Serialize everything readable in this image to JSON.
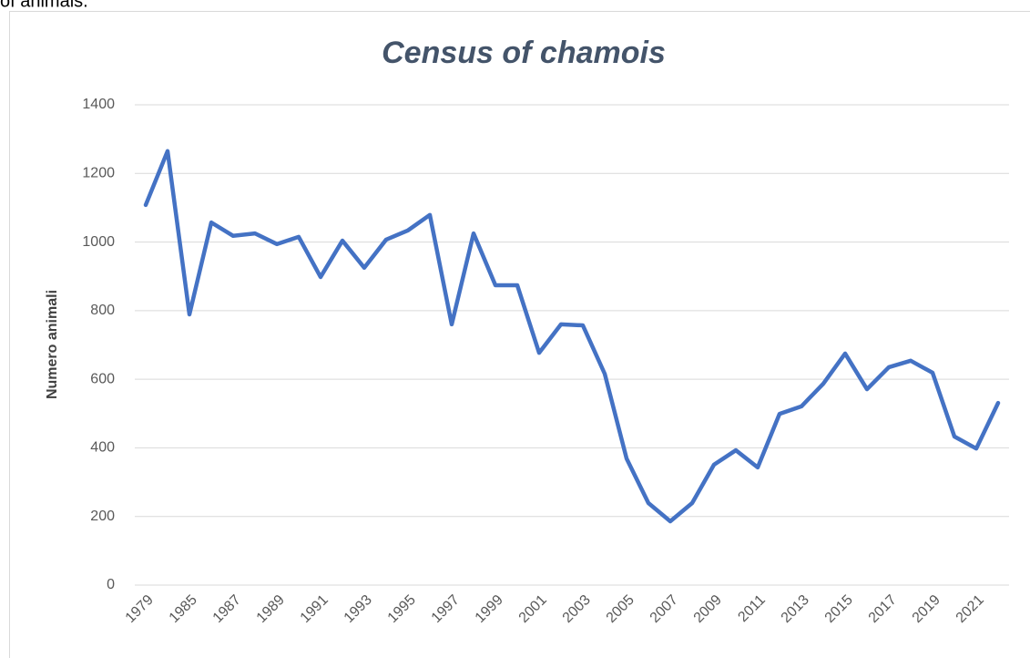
{
  "caption": "of animals.",
  "chart_data": {
    "type": "line",
    "title": "Census of chamois",
    "y_label": "Numero animali",
    "categories": [
      "1979",
      null,
      "1985",
      null,
      "1987",
      null,
      "1989",
      null,
      "1991",
      null,
      "1993",
      null,
      "1995",
      null,
      "1997",
      null,
      "1999",
      null,
      "2001",
      null,
      "2003",
      null,
      "2005",
      null,
      "2007",
      null,
      "2009",
      null,
      "2011",
      null,
      "2013",
      null,
      "2015",
      null,
      "2017",
      null,
      "2019",
      null,
      "2021",
      null
    ],
    "series": [
      {
        "name": "Census of chamois",
        "color": "#4472c4",
        "values": [
          1108,
          1265,
          789,
          1057,
          1018,
          1025,
          994,
          1015,
          898,
          1004,
          925,
          1007,
          1034,
          1079,
          760,
          1025,
          874,
          874,
          677,
          760,
          757,
          616,
          369,
          239,
          186,
          239,
          351,
          393,
          343,
          499,
          521,
          587,
          675,
          571,
          635,
          654,
          619,
          433,
          398,
          531
        ]
      }
    ],
    "ylim": [
      0,
      1400
    ],
    "yticks": [
      0,
      200,
      400,
      600,
      800,
      1000,
      1200,
      1400
    ],
    "grid": true
  }
}
